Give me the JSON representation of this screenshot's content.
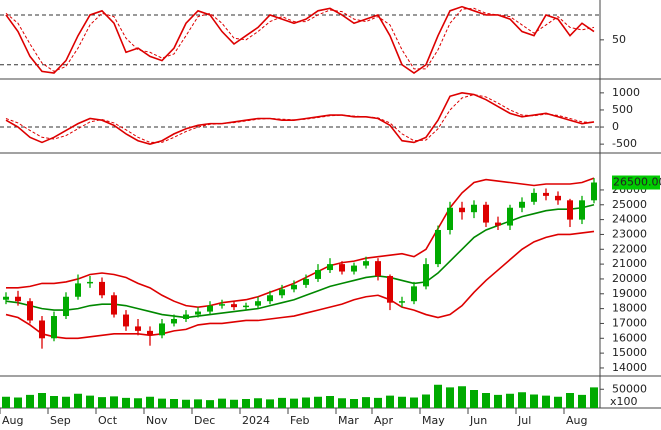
{
  "chart_data": [
    {
      "type": "line",
      "ylim": [
        4,
        92
      ],
      "yticks": [
        50
      ],
      "levels": [
        20,
        80
      ],
      "series": [
        {
          "color": "#dd0000",
          "style": "solid",
          "values": [
            80,
            60,
            30,
            12,
            10,
            25,
            55,
            80,
            85,
            70,
            35,
            40,
            30,
            25,
            40,
            70,
            85,
            80,
            60,
            45,
            55,
            65,
            80,
            75,
            70,
            75,
            85,
            88,
            80,
            70,
            75,
            80,
            55,
            20,
            10,
            20,
            55,
            85,
            90,
            85,
            80,
            80,
            75,
            60,
            55,
            80,
            75,
            55,
            70,
            60
          ]
        },
        {
          "color": "#dd0000",
          "style": "dashed",
          "values": [
            82,
            70,
            45,
            22,
            12,
            18,
            40,
            68,
            82,
            78,
            52,
            38,
            35,
            28,
            33,
            55,
            78,
            82,
            70,
            52,
            50,
            60,
            72,
            78,
            72,
            72,
            80,
            86,
            84,
            75,
            72,
            78,
            68,
            38,
            15,
            15,
            38,
            70,
            87,
            88,
            82,
            80,
            78,
            68,
            58,
            68,
            78,
            65,
            62,
            65
          ]
        }
      ]
    },
    {
      "type": "line",
      "ylim": [
        -730,
        1230
      ],
      "yticks": [
        1000,
        500,
        0,
        -500
      ],
      "levels": [
        0
      ],
      "series": [
        {
          "color": "#dd0000",
          "style": "solid",
          "values": [
            200,
            0,
            -300,
            -450,
            -300,
            -100,
            100,
            250,
            200,
            50,
            -200,
            -400,
            -500,
            -400,
            -200,
            -50,
            50,
            100,
            100,
            150,
            200,
            250,
            250,
            200,
            200,
            250,
            300,
            350,
            350,
            300,
            300,
            250,
            50,
            -400,
            -450,
            -300,
            200,
            900,
            1000,
            950,
            800,
            600,
            400,
            300,
            350,
            400,
            300,
            200,
            100,
            150
          ]
        },
        {
          "color": "#dd0000",
          "style": "dashed",
          "values": [
            250,
            120,
            -100,
            -300,
            -350,
            -250,
            -50,
            150,
            220,
            120,
            -80,
            -300,
            -450,
            -450,
            -300,
            -130,
            0,
            80,
            100,
            130,
            180,
            230,
            250,
            230,
            210,
            230,
            280,
            330,
            350,
            320,
            300,
            270,
            120,
            -200,
            -400,
            -380,
            -50,
            500,
            850,
            950,
            880,
            700,
            500,
            350,
            330,
            380,
            340,
            250,
            150,
            130
          ]
        }
      ]
    },
    {
      "type": "candlestick",
      "ylim": [
        13660,
        28220
      ],
      "yticks": [
        14000,
        15000,
        16000,
        17000,
        18000,
        19000,
        20000,
        21000,
        22000,
        23000,
        24000,
        25000,
        26000
      ],
      "last_price": {
        "value": 26500,
        "label": "26500.00"
      },
      "up_color": "#00aa00",
      "down_color": "#dd0000",
      "open": [
        18600,
        18800,
        18500,
        17200,
        16000,
        17500,
        18800,
        19700,
        19800,
        18900,
        17600,
        16800,
        16500,
        16200,
        17000,
        17300,
        17600,
        17800,
        18200,
        18300,
        18100,
        18200,
        18500,
        18900,
        19300,
        19600,
        20000,
        20600,
        21000,
        20500,
        20900,
        21200,
        20200,
        18400,
        18500,
        19500,
        21000,
        23300,
        24800,
        24500,
        25000,
        23800,
        23600,
        24800,
        25200,
        25800,
        25600,
        25300,
        24000,
        25300
      ],
      "high": [
        19100,
        19200,
        18700,
        17500,
        17800,
        19100,
        20300,
        20200,
        20100,
        19100,
        17900,
        17300,
        16800,
        17300,
        17600,
        17900,
        18100,
        18500,
        18600,
        18500,
        18400,
        18800,
        19200,
        19600,
        19900,
        20300,
        21000,
        21400,
        21200,
        21100,
        21500,
        21400,
        20300,
        18800,
        19800,
        21400,
        23600,
        25200,
        25200,
        25300,
        25200,
        24200,
        25000,
        25500,
        26100,
        26100,
        25900,
        25400,
        25600,
        26800
      ],
      "low": [
        18300,
        18200,
        17000,
        15300,
        15800,
        17300,
        18600,
        19400,
        18700,
        17400,
        16500,
        16200,
        15500,
        16000,
        16800,
        17100,
        17400,
        17600,
        18000,
        17900,
        17900,
        18000,
        18300,
        18700,
        19100,
        19400,
        19800,
        20400,
        20300,
        20300,
        20700,
        19900,
        17900,
        18100,
        18300,
        19300,
        20800,
        23000,
        24000,
        24100,
        23500,
        23300,
        23300,
        24500,
        25000,
        25300,
        25000,
        23500,
        23700,
        25100
      ],
      "close": [
        18800,
        18500,
        17200,
        16000,
        17500,
        18800,
        19700,
        19800,
        18900,
        17600,
        16800,
        16500,
        16200,
        17000,
        17300,
        17600,
        17800,
        18200,
        18300,
        18100,
        18200,
        18500,
        18900,
        19300,
        19600,
        20000,
        20600,
        21000,
        20500,
        20900,
        21200,
        20200,
        18400,
        18500,
        19500,
        21000,
        23300,
        24800,
        24500,
        25000,
        23800,
        23600,
        24800,
        25200,
        25800,
        25600,
        25300,
        24000,
        25300,
        26500
      ],
      "series": [
        {
          "color": "#dd0000",
          "values": [
            19400,
            19400,
            19500,
            19700,
            19700,
            19800,
            20000,
            20300,
            20400,
            20300,
            20100,
            19700,
            19400,
            18900,
            18500,
            18200,
            18100,
            18200,
            18400,
            18500,
            18600,
            18800,
            19100,
            19400,
            19700,
            20100,
            20500,
            20900,
            21100,
            21200,
            21400,
            21500,
            21600,
            21700,
            21500,
            22000,
            23400,
            24800,
            25800,
            26500,
            26700,
            26600,
            26500,
            26400,
            26300,
            26400,
            26400,
            26400,
            26500,
            26800
          ]
        },
        {
          "color": "#008800",
          "values": [
            18500,
            18400,
            18200,
            18000,
            17900,
            17900,
            18000,
            18200,
            18300,
            18300,
            18200,
            18000,
            17800,
            17600,
            17500,
            17400,
            17500,
            17600,
            17700,
            17800,
            17900,
            18000,
            18200,
            18400,
            18600,
            18900,
            19200,
            19500,
            19700,
            19900,
            20100,
            20200,
            20100,
            19900,
            19700,
            19800,
            20400,
            21200,
            22000,
            22800,
            23300,
            23600,
            23900,
            24200,
            24400,
            24600,
            24700,
            24700,
            24800,
            25000
          ]
        },
        {
          "color": "#dd0000",
          "values": [
            17600,
            17400,
            16900,
            16300,
            16100,
            16000,
            16000,
            16100,
            16200,
            16300,
            16300,
            16300,
            16200,
            16300,
            16500,
            16600,
            16900,
            17000,
            17000,
            17100,
            17200,
            17200,
            17300,
            17400,
            17500,
            17700,
            17900,
            18100,
            18300,
            18600,
            18800,
            18900,
            18600,
            18100,
            17900,
            17600,
            17400,
            17600,
            18200,
            19100,
            19900,
            20600,
            21300,
            22000,
            22500,
            22800,
            23000,
            23000,
            23100,
            23200
          ]
        }
      ]
    },
    {
      "type": "bar",
      "ylim": [
        0,
        80000
      ],
      "yticks": [
        50000
      ],
      "unit_label": "x100",
      "color": "#00aa00",
      "categories": [
        "Aug",
        null,
        null,
        null,
        "Sep",
        null,
        null,
        null,
        "Oct",
        null,
        null,
        null,
        "Nov",
        null,
        null,
        null,
        "Dec",
        null,
        null,
        null,
        "2024",
        null,
        null,
        null,
        "Feb",
        null,
        null,
        null,
        "Mar",
        null,
        null,
        "Apr",
        null,
        null,
        null,
        "May",
        null,
        null,
        null,
        "Jun",
        null,
        null,
        null,
        "Jul",
        null,
        null,
        null,
        "Aug",
        null,
        null
      ],
      "values": [
        30000,
        28000,
        35000,
        40000,
        32000,
        30000,
        38000,
        33000,
        29000,
        31000,
        27000,
        26000,
        30000,
        25000,
        24000,
        22000,
        23000,
        21000,
        25000,
        22000,
        24000,
        26000,
        23000,
        27000,
        25000,
        28000,
        30000,
        32000,
        26000,
        24000,
        29000,
        27000,
        33000,
        30000,
        28000,
        36000,
        62000,
        55000,
        58000,
        48000,
        40000,
        35000,
        38000,
        42000,
        36000,
        33000,
        30000,
        40000,
        35000,
        55000
      ]
    }
  ]
}
